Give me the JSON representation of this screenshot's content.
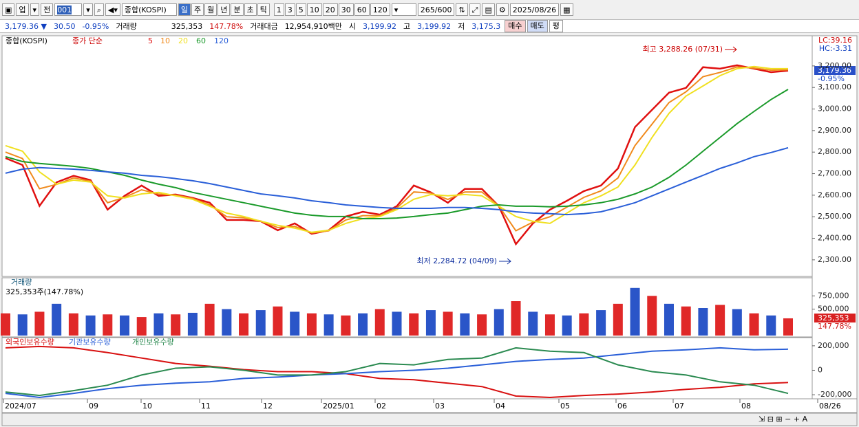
{
  "toolbar": {
    "market": "업",
    "prev": "전",
    "code": "001",
    "name": "종합(KOSPI)",
    "periods": [
      "일",
      "주",
      "월",
      "년",
      "분",
      "초",
      "틱"
    ],
    "intervals": [
      "1",
      "3",
      "5",
      "10",
      "20",
      "30",
      "60",
      "120"
    ],
    "count": "265",
    "max": "/600",
    "date": "2025/08/26"
  },
  "quote": {
    "price": "3,179.36 ▼",
    "change": "30.50",
    "rate": "-0.95%",
    "volume_label": "거래량",
    "volume": "325,353",
    "volume_rate": "147.78%",
    "amount_label": "거래대금",
    "amount": "12,954,910백만",
    "open_label": "시",
    "open": "3,199.92",
    "high_label": "고",
    "high": "3,199.92",
    "low_label": "저",
    "low": "3,175.3",
    "buy": "매수",
    "sell": "매도",
    "avg": "평"
  },
  "price_panel": {
    "title": "종합(KOSPI)",
    "ma_label": "종가 단순",
    "max_note": "최고 3,288.26 (07/31)",
    "min_note": "최저 2,284.72 (04/09)",
    "lc": "LC:39.16",
    "hc": "HC:-3.31",
    "last": "3,179.36",
    "last_rate": "-0.95%",
    "ylim": [
      2223,
      3340
    ],
    "yticks": [
      {
        "value": 2300,
        "label": "2,300.00"
      },
      {
        "value": 2400,
        "label": "2,400.00"
      },
      {
        "value": 2500,
        "label": "2,500.00"
      },
      {
        "value": 2600,
        "label": "2,600.00"
      },
      {
        "value": 2700,
        "label": "2,700.00"
      },
      {
        "value": 2800,
        "label": "2,800.00"
      },
      {
        "value": 2900,
        "label": "2,900.00"
      },
      {
        "value": 3000,
        "label": "3,000.00"
      },
      {
        "value": 3100,
        "label": "3,100.00"
      },
      {
        "value": 3200,
        "label": "3,200.00"
      }
    ],
    "series": [
      {
        "name": "5",
        "color": "#e01010",
        "values": [
          2772,
          2740,
          2550,
          2660,
          2690,
          2670,
          2533,
          2597,
          2645,
          2597,
          2603,
          2587,
          2565,
          2485,
          2485,
          2479,
          2437,
          2469,
          2421,
          2437,
          2501,
          2523,
          2510,
          2549,
          2645,
          2613,
          2565,
          2629,
          2629,
          2549,
          2373,
          2469,
          2533,
          2574,
          2619,
          2645,
          2724,
          2916,
          2996,
          3076,
          3098,
          3194,
          3187,
          3203,
          3187,
          3171,
          3178
        ]
      },
      {
        "name": "10",
        "color": "#f08a1c",
        "values": [
          2800,
          2770,
          2630,
          2650,
          2680,
          2665,
          2565,
          2590,
          2625,
          2605,
          2600,
          2585,
          2555,
          2500,
          2495,
          2480,
          2450,
          2455,
          2425,
          2435,
          2485,
          2505,
          2505,
          2540,
          2615,
          2610,
          2580,
          2615,
          2615,
          2550,
          2435,
          2475,
          2500,
          2545,
          2590,
          2620,
          2680,
          2830,
          2930,
          3030,
          3080,
          3150,
          3170,
          3195,
          3190,
          3180,
          3182
        ]
      },
      {
        "name": "20",
        "color": "#f0e020",
        "values": [
          2830,
          2804,
          2708,
          2651,
          2670,
          2661,
          2597,
          2587,
          2606,
          2613,
          2597,
          2581,
          2549,
          2517,
          2501,
          2479,
          2460,
          2447,
          2428,
          2437,
          2469,
          2491,
          2501,
          2533,
          2581,
          2603,
          2597,
          2603,
          2597,
          2549,
          2501,
          2479,
          2469,
          2517,
          2565,
          2597,
          2638,
          2740,
          2868,
          2980,
          3060,
          3107,
          3155,
          3187,
          3197,
          3187,
          3187
        ]
      },
      {
        "name": "60",
        "color": "#1a9a2a",
        "values": [
          2779,
          2756,
          2747,
          2741,
          2734,
          2724,
          2708,
          2692,
          2670,
          2651,
          2635,
          2613,
          2597,
          2581,
          2565,
          2549,
          2533,
          2517,
          2507,
          2501,
          2501,
          2491,
          2491,
          2494,
          2501,
          2510,
          2517,
          2533,
          2549,
          2555,
          2549,
          2549,
          2546,
          2549,
          2555,
          2565,
          2581,
          2606,
          2638,
          2683,
          2740,
          2804,
          2868,
          2932,
          2989,
          3044,
          3091
        ]
      },
      {
        "name": "120",
        "color": "#2a5fd8",
        "values": [
          2702,
          2721,
          2728,
          2724,
          2721,
          2715,
          2708,
          2702,
          2692,
          2686,
          2677,
          2667,
          2654,
          2638,
          2622,
          2606,
          2597,
          2587,
          2574,
          2565,
          2555,
          2549,
          2543,
          2539,
          2539,
          2539,
          2543,
          2543,
          2539,
          2533,
          2523,
          2517,
          2514,
          2510,
          2514,
          2523,
          2543,
          2565,
          2597,
          2629,
          2661,
          2692,
          2724,
          2750,
          2779,
          2798,
          2820
        ]
      }
    ]
  },
  "volume_panel": {
    "title": "거래량",
    "subtitle": "325,353주(147.78%)",
    "last": "325,353",
    "last_rate": "147.78%",
    "colors": [
      "#e02828",
      "#2a55c8"
    ],
    "ylim": [
      0,
      1092000
    ],
    "yticks": [
      {
        "value": 500000,
        "label": "500,000"
      },
      {
        "value": 750000,
        "label": "750,000"
      }
    ],
    "values": [
      420000,
      400000,
      450000,
      600000,
      420000,
      380000,
      400000,
      380000,
      350000,
      420000,
      400000,
      430000,
      600000,
      500000,
      420000,
      480000,
      550000,
      450000,
      420000,
      400000,
      380000,
      420000,
      500000,
      450000,
      420000,
      480000,
      450000,
      420000,
      400000,
      500000,
      650000,
      450000,
      400000,
      380000,
      420000,
      480000,
      600000,
      900000,
      750000,
      600000,
      550000,
      520000,
      580000,
      500000,
      420000,
      380000,
      325353
    ]
  },
  "holding_panel": {
    "ylim": [
      -233300,
      255600
    ],
    "yticks": [
      {
        "value": 200000,
        "label": "200,000"
      },
      0,
      {
        "value": -200000,
        "label": "-200,000"
      }
    ],
    "series": [
      {
        "name": "외국인보유수량",
        "color": "#d81010",
        "values": [
          183300,
          194400,
          183300,
          144400,
          100000,
          55600,
          33300,
          5600,
          -11100,
          -11100,
          -27800,
          -66700,
          -77800,
          -105600,
          -133300,
          -211100,
          -222200,
          -205600,
          -194400,
          -177800,
          -155600,
          -138900,
          -111100,
          -100000
        ]
      },
      {
        "name": "기관보유수량",
        "color": "#2a5fd8",
        "values": [
          -188900,
          -222200,
          -188900,
          -150000,
          -122200,
          -105600,
          -94400,
          -66700,
          -55600,
          -38900,
          -27800,
          -11100,
          0,
          16700,
          44400,
          72200,
          88900,
          100000,
          127800,
          155600,
          166700,
          183300,
          166700,
          172200
        ]
      },
      {
        "name": "개인보유수량",
        "color": "#2a8a50",
        "values": [
          -177800,
          -205600,
          -166700,
          -122200,
          -38900,
          16700,
          27800,
          0,
          -38900,
          -38900,
          -11100,
          55600,
          44400,
          88900,
          100000,
          183300,
          155600,
          144400,
          44400,
          -11100,
          -38900,
          -94400,
          -122200,
          -188900
        ]
      }
    ]
  },
  "x_axis": {
    "labels": [
      "2024/07",
      "09",
      "10",
      "11",
      "12",
      "2025/01",
      "02",
      "03",
      "04",
      "05",
      "06",
      "07",
      "08",
      "08/26"
    ]
  }
}
